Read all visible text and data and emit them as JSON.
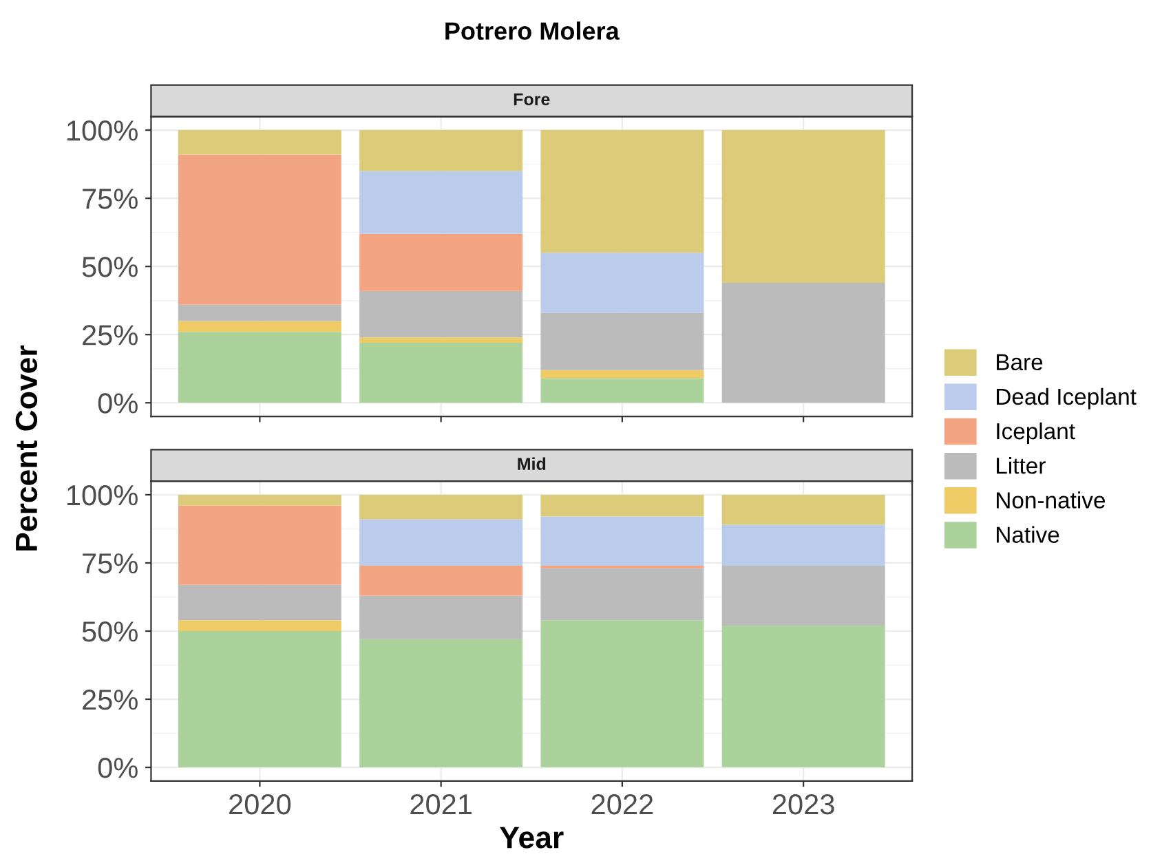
{
  "chart_data": [
    {
      "type": "bar",
      "stacked": true,
      "title": "Potrero Molera",
      "subtitle": "Fore",
      "ylabel": "Percent Cover",
      "categories": [
        "2020",
        "2021",
        "2022",
        "2023"
      ],
      "series": [
        {
          "name": "Native",
          "color": "#acd29c",
          "values": [
            26,
            22,
            9,
            0
          ]
        },
        {
          "name": "Non-native",
          "color": "#efcb66",
          "values": [
            4,
            2,
            3,
            0
          ]
        },
        {
          "name": "Litter",
          "color": "#bbbbbb",
          "values": [
            6,
            17,
            21,
            44
          ]
        },
        {
          "name": "Iceplant",
          "color": "#f3a583",
          "values": [
            55,
            21,
            0,
            0
          ]
        },
        {
          "name": "Dead Iceplant",
          "color": "#bbcbec",
          "values": [
            0,
            23,
            22,
            0
          ]
        },
        {
          "name": "Bare",
          "color": "#dccb78",
          "values": [
            9,
            15,
            45,
            56
          ]
        }
      ],
      "ylim": [
        -5,
        105
      ],
      "yticks": [
        {
          "value": 0,
          "label": "0%"
        },
        {
          "value": 25,
          "label": "25%"
        },
        {
          "value": 50,
          "label": "50%"
        },
        {
          "value": 75,
          "label": "75%"
        },
        {
          "value": 100,
          "label": "100%"
        }
      ],
      "grid": true,
      "legend": "right",
      "tick_labels": "y"
    },
    {
      "type": "bar",
      "stacked": true,
      "subtitle": "Mid",
      "xlabel": "Year",
      "categories": [
        "2020",
        "2021",
        "2022",
        "2023"
      ],
      "series": [
        {
          "name": "Native",
          "color": "#acd29c",
          "values": [
            50,
            47,
            54,
            52
          ]
        },
        {
          "name": "Non-native",
          "color": "#efcb66",
          "values": [
            4,
            0,
            0,
            0
          ]
        },
        {
          "name": "Litter",
          "color": "#bbbbbb",
          "values": [
            13,
            16,
            19,
            22
          ]
        },
        {
          "name": "Iceplant",
          "color": "#f3a583",
          "values": [
            29,
            11,
            1,
            0
          ]
        },
        {
          "name": "Dead Iceplant",
          "color": "#bbcbec",
          "values": [
            0,
            17,
            18,
            15
          ]
        },
        {
          "name": "Bare",
          "color": "#dccb78",
          "values": [
            4,
            9,
            8,
            11
          ]
        }
      ],
      "ylim": [
        -5,
        105
      ],
      "yticks": [
        {
          "value": 0,
          "label": "0%"
        },
        {
          "value": 25,
          "label": "25%"
        },
        {
          "value": 50,
          "label": "50%"
        },
        {
          "value": 75,
          "label": "75%"
        },
        {
          "value": 100,
          "label": "100%"
        }
      ],
      "grid": true
    }
  ]
}
